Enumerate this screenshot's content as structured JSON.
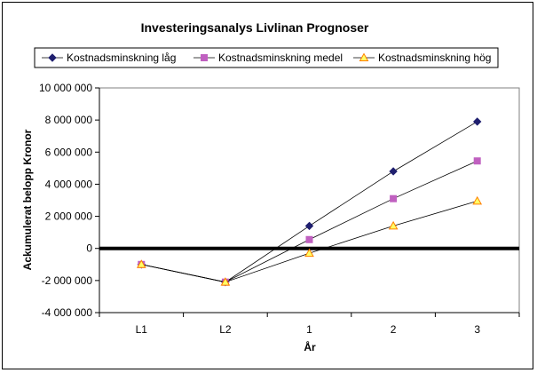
{
  "chart_data": {
    "type": "line",
    "title": "Investeringsanalys Livlinan Prognoser",
    "xlabel": "År",
    "ylabel": "Ackumulerat belopp Kronor",
    "categories": [
      "L1",
      "L2",
      "1",
      "2",
      "3"
    ],
    "ylim": [
      -4000000,
      10000000
    ],
    "ytick_step": 2000000,
    "y_tick_labels": [
      "-4 000 000",
      "-2 000 000",
      "0",
      "2 000 000",
      "4 000 000",
      "6 000 000",
      "8 000 000",
      "10 000 000"
    ],
    "grid": false,
    "zero_line": "bold",
    "legend_position": "top",
    "series": [
      {
        "name": "Kostnadsminskning låg",
        "values": [
          -1000000,
          -2100000,
          1400000,
          4800000,
          7900000
        ],
        "color": "#1f1f6f",
        "marker": "diamond"
      },
      {
        "name": "Kostnadsminskning medel",
        "values": [
          -1000000,
          -2100000,
          550000,
          3100000,
          5450000
        ],
        "color": "#c060c0",
        "marker": "square"
      },
      {
        "name": "Kostnadsminskning hög",
        "values": [
          -1000000,
          -2100000,
          -300000,
          1400000,
          2950000
        ],
        "color": "#ff8000",
        "marker": "triangle"
      }
    ]
  }
}
